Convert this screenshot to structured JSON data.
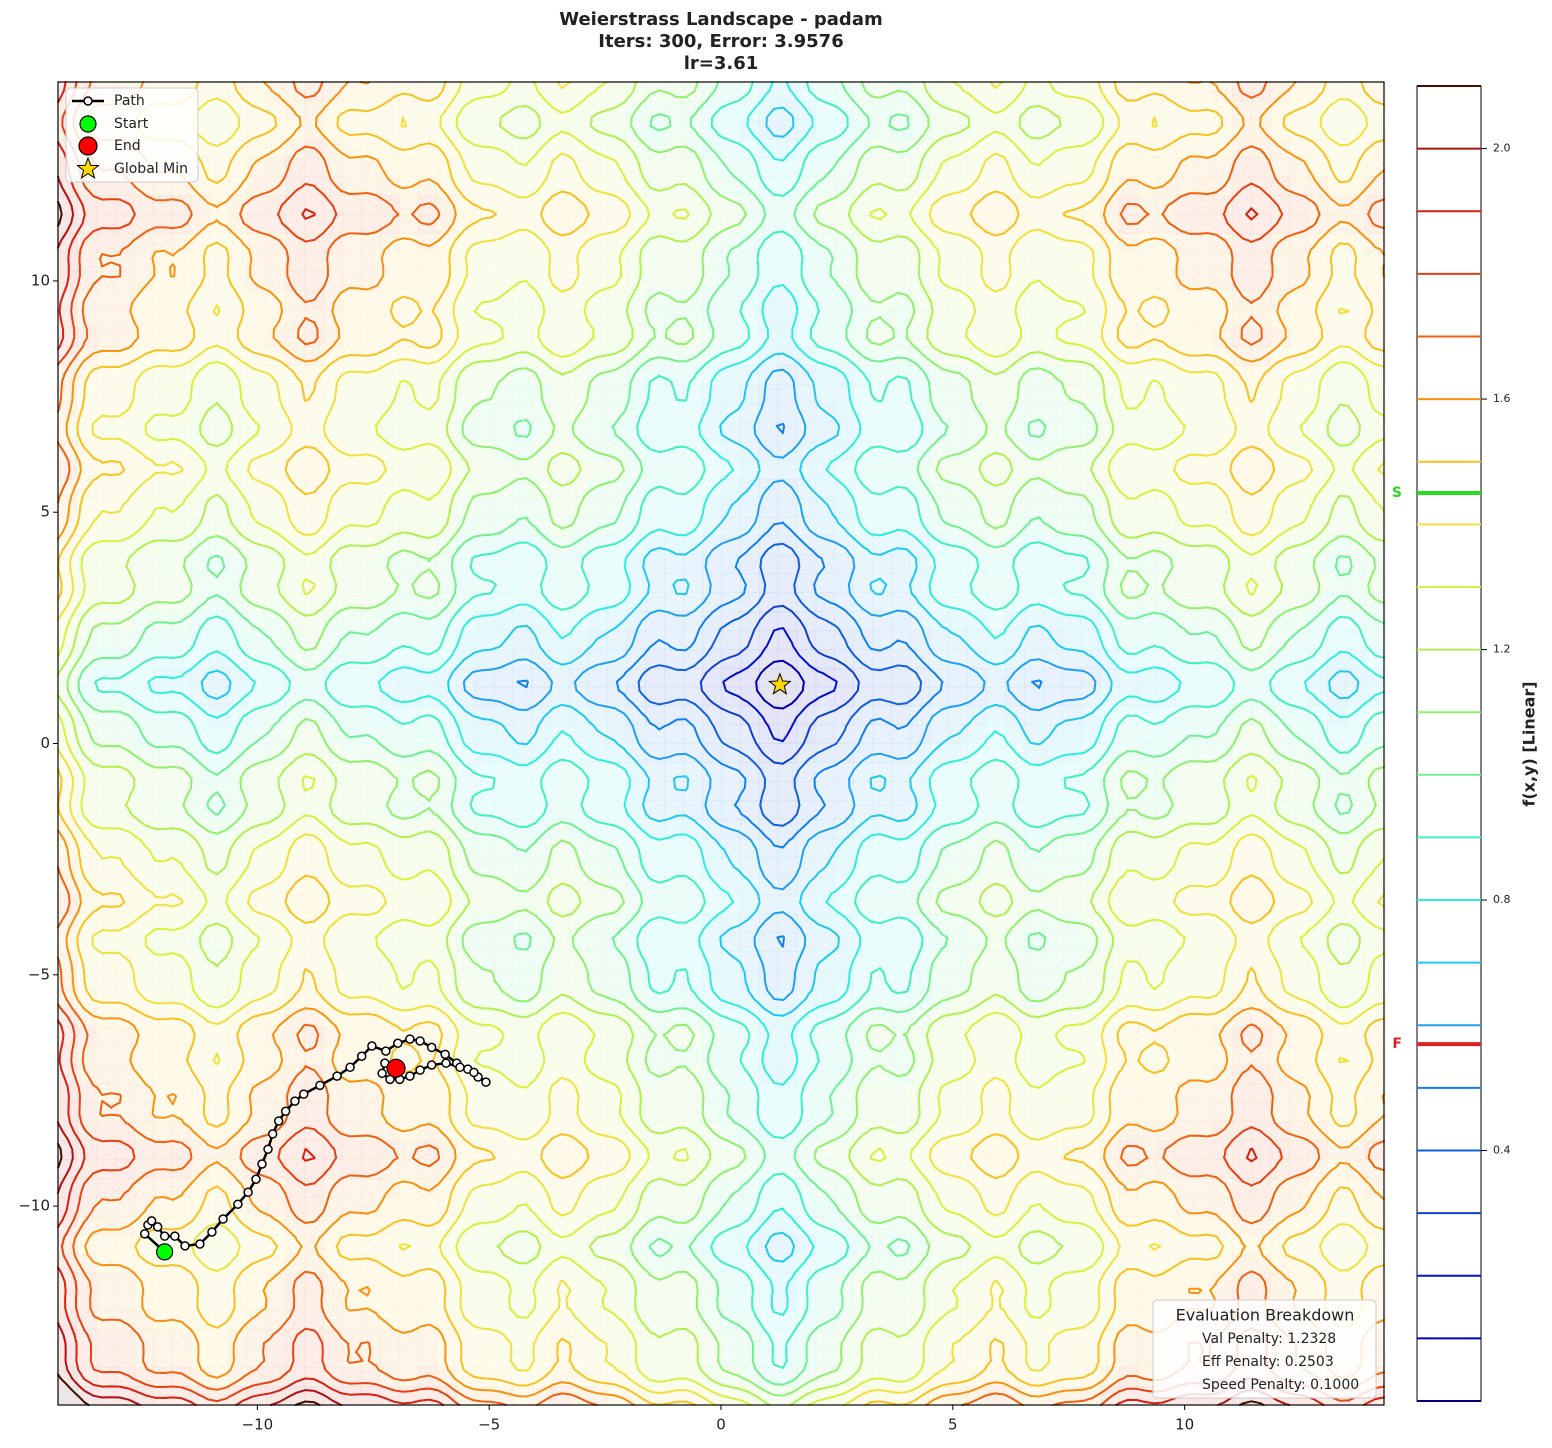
{
  "chart_data": {
    "type": "contour",
    "title_lines": [
      "Weierstrass Landscape - padam",
      "Iters: 300, Error: 3.9576",
      "lr=3.61"
    ],
    "xlim": [
      -14.3,
      14.3
    ],
    "ylim": [
      -14.3,
      14.3
    ],
    "xticks": [
      {
        "value": -10,
        "label": "−10"
      },
      {
        "value": -5,
        "label": "−5"
      },
      0,
      5,
      10
    ],
    "yticks": [
      {
        "value": -10,
        "label": "−10"
      },
      {
        "value": -5,
        "label": "−5"
      },
      0,
      5,
      10
    ],
    "path_label": "Path",
    "path": {
      "x": [
        -12.0,
        -12.43,
        -12.36,
        -12.28,
        -12.15,
        -12.0,
        -11.78,
        -11.56,
        -11.24,
        -10.98,
        -10.74,
        -10.42,
        -10.2,
        -10.03,
        -9.9,
        -9.77,
        -9.67,
        -9.54,
        -9.39,
        -9.19,
        -9.0,
        -8.65,
        -8.28,
        -8.0,
        -7.75,
        -7.53,
        -7.23,
        -6.97,
        -6.71,
        -6.49,
        -6.24,
        -5.95,
        -5.7,
        -5.46,
        -5.24,
        -5.07,
        -5.33,
        -5.63,
        -5.93,
        -6.24,
        -6.49,
        -6.71,
        -6.93,
        -7.14,
        -7.31,
        -7.25,
        -7.01
      ],
      "y": [
        -10.99,
        -10.6,
        -10.41,
        -10.32,
        -10.45,
        -10.65,
        -10.65,
        -10.86,
        -10.82,
        -10.56,
        -10.28,
        -9.96,
        -9.7,
        -9.42,
        -9.09,
        -8.77,
        -8.44,
        -8.16,
        -7.95,
        -7.73,
        -7.58,
        -7.39,
        -7.19,
        -7.0,
        -6.76,
        -6.54,
        -6.65,
        -6.48,
        -6.39,
        -6.43,
        -6.57,
        -6.72,
        -6.91,
        -7.04,
        -7.21,
        -7.32,
        -7.11,
        -7.0,
        -6.91,
        -6.95,
        -7.06,
        -7.19,
        -7.26,
        -7.26,
        -7.13,
        -6.91,
        -7.02
      ]
    },
    "start": {
      "label": "Start",
      "x": -12.0,
      "y": -10.99,
      "color": "#00ff00"
    },
    "end": {
      "label": "End",
      "x": -7.01,
      "y": -7.02,
      "color": "#ff0000"
    },
    "global_min": {
      "label": "Global Min",
      "x": 1.27,
      "y": 1.27,
      "color": "#ffd700"
    },
    "colorbar": {
      "label": "f(x,y) [Linear]",
      "lim": [
        0,
        2.1
      ],
      "ticks": [
        0.4,
        0.8,
        1.2,
        1.6,
        {
          "value": 2,
          "label": "2.0"
        }
      ],
      "levels": [
        0,
        0.1,
        0.2,
        0.3,
        0.4,
        0.5,
        0.6,
        0.7,
        0.8,
        0.9,
        1.0,
        1.1,
        1.2,
        1.3,
        1.4,
        1.5,
        1.6,
        1.7,
        1.8,
        1.9,
        2.0,
        2.1
      ],
      "level_colors": [
        "#00007f",
        "#0000b0",
        "#0010d0",
        "#1040d0",
        "#1060e0",
        "#1080f0",
        "#20a0f0",
        "#20c8f0",
        "#30ece0",
        "#40f0c0",
        "#70f090",
        "#90f070",
        "#b0f050",
        "#d8f040",
        "#f0e040",
        "#f8c020",
        "#f89010",
        "#f06010",
        "#e84010",
        "#d82010",
        "#b01010",
        "#401000"
      ],
      "markers": [
        {
          "label": "S",
          "value": 1.45,
          "color": "#22dd22"
        },
        {
          "label": "F",
          "value": 0.57,
          "color": "#dd2222"
        }
      ]
    },
    "evaluation": {
      "title": "Evaluation Breakdown",
      "lines": [
        "Val Penalty: 1.2328",
        "Eff Penalty: 0.2503",
        "Speed Penalty: 0.1000"
      ]
    }
  }
}
